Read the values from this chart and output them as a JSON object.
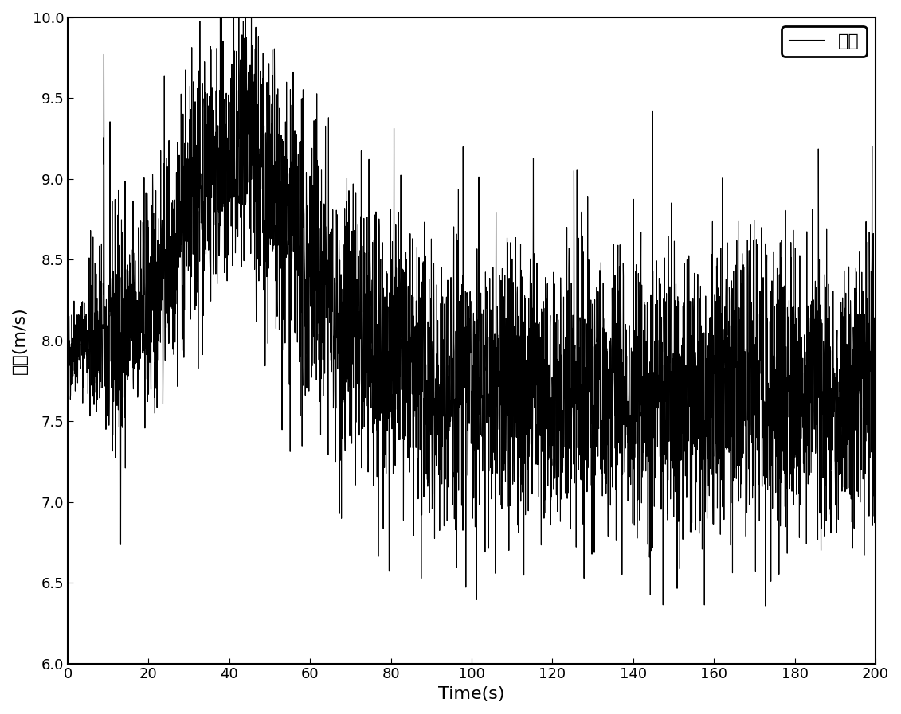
{
  "title": "",
  "xlabel": "Time(s)",
  "ylabel": "风速(m/s)",
  "legend_label": "风速",
  "xlim": [
    0,
    200
  ],
  "ylim": [
    6,
    10
  ],
  "yticks": [
    6,
    6.5,
    7,
    7.5,
    8,
    8.5,
    9,
    9.5,
    10
  ],
  "xticks": [
    0,
    20,
    40,
    60,
    80,
    100,
    120,
    140,
    160,
    180,
    200
  ],
  "line_color": "#000000",
  "line_width": 0.8,
  "figsize": [
    11.31,
    8.97
  ],
  "dpi": 100,
  "seed": 42,
  "n_points": 4000,
  "turbulence_intensity": 0.45
}
